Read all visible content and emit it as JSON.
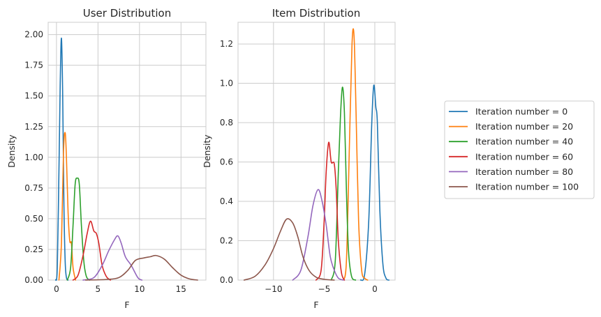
{
  "chart_data": [
    {
      "type": "line",
      "title": "User Distribution",
      "xlabel": "F",
      "ylabel": "Density",
      "xlim": [
        -1.0,
        18.0
      ],
      "ylim": [
        0.0,
        2.1
      ],
      "xticks": [
        0,
        5,
        10,
        15
      ],
      "xtick_labels": [
        "0",
        "5",
        "10",
        "15"
      ],
      "yticks": [
        0.0,
        0.25,
        0.5,
        0.75,
        1.0,
        1.25,
        1.5,
        1.75,
        2.0
      ],
      "ytick_labels": [
        "0.00",
        "0.25",
        "0.50",
        "0.75",
        "1.00",
        "1.25",
        "1.50",
        "1.75",
        "2.00"
      ],
      "grid": true,
      "series": [
        {
          "name": "Iteration number = 0",
          "color": "#1f77b4",
          "x": [
            -0.1,
            0.1,
            0.3,
            0.45,
            0.6,
            0.75,
            0.9,
            1.05,
            1.2,
            1.4
          ],
          "y": [
            0.0,
            0.1,
            0.9,
            1.6,
            1.97,
            1.5,
            0.6,
            0.15,
            0.02,
            0.0
          ]
        },
        {
          "name": "Iteration number = 20",
          "color": "#ff7f0e",
          "x": [
            0.3,
            0.6,
            0.85,
            1.05,
            1.2,
            1.4,
            1.6,
            1.8,
            2.0,
            2.3
          ],
          "y": [
            0.0,
            0.3,
            1.05,
            1.2,
            1.0,
            0.55,
            0.32,
            0.3,
            0.1,
            0.0
          ]
        },
        {
          "name": "Iteration number = 40",
          "color": "#2ca02c",
          "x": [
            1.3,
            1.7,
            2.0,
            2.25,
            2.5,
            2.75,
            3.0,
            3.3,
            3.6,
            4.0
          ],
          "y": [
            0.0,
            0.1,
            0.45,
            0.78,
            0.83,
            0.78,
            0.45,
            0.15,
            0.03,
            0.0
          ]
        },
        {
          "name": "Iteration number = 60",
          "color": "#d62728",
          "x": [
            2.0,
            2.6,
            3.2,
            3.7,
            4.1,
            4.5,
            4.8,
            5.1,
            5.5,
            6.0,
            6.5
          ],
          "y": [
            0.0,
            0.04,
            0.2,
            0.38,
            0.48,
            0.4,
            0.38,
            0.3,
            0.12,
            0.03,
            0.0
          ]
        },
        {
          "name": "Iteration number = 80",
          "color": "#9467bd",
          "x": [
            3.2,
            4.5,
            5.5,
            6.3,
            7.0,
            7.4,
            7.8,
            8.3,
            9.0,
            9.8,
            10.3
          ],
          "y": [
            0.0,
            0.02,
            0.12,
            0.24,
            0.33,
            0.36,
            0.3,
            0.19,
            0.12,
            0.02,
            0.0
          ]
        },
        {
          "name": "Iteration number = 100",
          "color": "#8c564b",
          "x": [
            3.5,
            6.0,
            7.5,
            8.6,
            9.5,
            10.5,
            11.3,
            12.0,
            13.0,
            14.0,
            15.0,
            16.0,
            17.0
          ],
          "y": [
            0.0,
            0.005,
            0.02,
            0.08,
            0.16,
            0.18,
            0.19,
            0.2,
            0.17,
            0.1,
            0.04,
            0.01,
            0.0
          ]
        }
      ]
    },
    {
      "type": "line",
      "title": "Item Distribution",
      "xlabel": "F",
      "ylabel": "Density",
      "xlim": [
        -13.5,
        2.0
      ],
      "ylim": [
        0.0,
        1.31
      ],
      "xticks": [
        -10,
        -5,
        0
      ],
      "xtick_labels": [
        "−10",
        "−5",
        "0"
      ],
      "yticks": [
        0.0,
        0.2,
        0.4,
        0.6,
        0.8,
        1.0,
        1.2
      ],
      "ytick_labels": [
        "0.0",
        "0.2",
        "0.4",
        "0.6",
        "0.8",
        "1.0",
        "1.2"
      ],
      "grid": true,
      "series": [
        {
          "name": "Iteration number = 0",
          "color": "#1f77b4",
          "x": [
            -1.4,
            -1.0,
            -0.6,
            -0.3,
            -0.1,
            0.1,
            0.25,
            0.5,
            0.8,
            1.1,
            1.4
          ],
          "y": [
            0.0,
            0.03,
            0.3,
            0.8,
            0.99,
            0.88,
            0.8,
            0.35,
            0.08,
            0.01,
            0.0
          ]
        },
        {
          "name": "Iteration number = 20",
          "color": "#ff7f0e",
          "x": [
            -3.1,
            -2.8,
            -2.5,
            -2.25,
            -2.05,
            -1.85,
            -1.6,
            -1.3,
            -1.0,
            -0.7
          ],
          "y": [
            0.0,
            0.1,
            0.7,
            1.2,
            1.24,
            0.85,
            0.3,
            0.05,
            0.01,
            0.0
          ]
        },
        {
          "name": "Iteration number = 40",
          "color": "#2ca02c",
          "x": [
            -4.3,
            -3.9,
            -3.6,
            -3.4,
            -3.2,
            -3.0,
            -2.8,
            -2.6,
            -2.3,
            -1.9
          ],
          "y": [
            0.0,
            0.1,
            0.55,
            0.82,
            0.98,
            0.85,
            0.45,
            0.15,
            0.02,
            0.0
          ]
        },
        {
          "name": "Iteration number = 60",
          "color": "#d62728",
          "x": [
            -5.8,
            -5.3,
            -5.0,
            -4.8,
            -4.55,
            -4.3,
            -4.0,
            -3.8,
            -3.6,
            -3.3,
            -3.0
          ],
          "y": [
            0.0,
            0.05,
            0.3,
            0.55,
            0.7,
            0.6,
            0.59,
            0.45,
            0.2,
            0.04,
            0.0
          ]
        },
        {
          "name": "Iteration number = 80",
          "color": "#9467bd",
          "x": [
            -8.1,
            -7.3,
            -6.6,
            -6.1,
            -5.6,
            -5.2,
            -4.8,
            -4.4,
            -4.0,
            -3.6,
            -3.1
          ],
          "y": [
            0.0,
            0.05,
            0.22,
            0.38,
            0.46,
            0.4,
            0.28,
            0.12,
            0.05,
            0.01,
            0.0
          ]
        },
        {
          "name": "Iteration number = 100",
          "color": "#8c564b",
          "x": [
            -12.9,
            -11.8,
            -10.8,
            -10.0,
            -9.3,
            -8.7,
            -8.1,
            -7.6,
            -7.1,
            -6.5,
            -5.8,
            -5.0,
            -4.0
          ],
          "y": [
            0.0,
            0.02,
            0.08,
            0.16,
            0.25,
            0.31,
            0.29,
            0.22,
            0.12,
            0.05,
            0.015,
            0.004,
            0.0
          ]
        }
      ]
    }
  ],
  "legend": {
    "placement": "right",
    "entries": [
      {
        "label": "Iteration number = 0",
        "color": "#1f77b4"
      },
      {
        "label": "Iteration number = 20",
        "color": "#ff7f0e"
      },
      {
        "label": "Iteration number = 40",
        "color": "#2ca02c"
      },
      {
        "label": "Iteration number = 60",
        "color": "#d62728"
      },
      {
        "label": "Iteration number = 80",
        "color": "#9467bd"
      },
      {
        "label": "Iteration number = 100",
        "color": "#8c564b"
      }
    ]
  }
}
